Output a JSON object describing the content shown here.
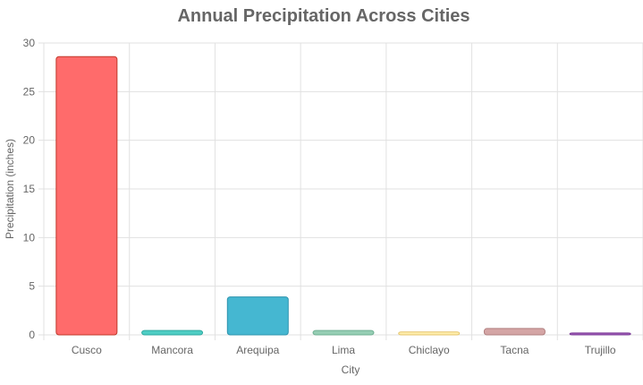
{
  "chart_data": {
    "type": "bar",
    "title": "Annual Precipitation Across Cities",
    "xlabel": "City",
    "ylabel": "Precipitation (inches)",
    "ylim": [
      0,
      30
    ],
    "yticks": [
      0,
      5,
      10,
      15,
      20,
      25,
      30
    ],
    "grid": true,
    "categories": [
      "Cusco",
      "Mancora",
      "Arequipa",
      "Lima",
      "Chiclayo",
      "Tacna",
      "Trujillo"
    ],
    "values": [
      28.6,
      0.45,
      3.9,
      0.45,
      0.3,
      0.65,
      0.2
    ],
    "colors": [
      "#FF6B6B",
      "#4ECDC4",
      "#45B7D1",
      "#96CEB4",
      "#FFEEAD",
      "#D4A5A5",
      "#9B59B6"
    ],
    "border_colors": [
      "#C0392B",
      "#2EA89F",
      "#2E94AE",
      "#6FAF92",
      "#E5C46A",
      "#B07F7F",
      "#7D3C98"
    ]
  }
}
